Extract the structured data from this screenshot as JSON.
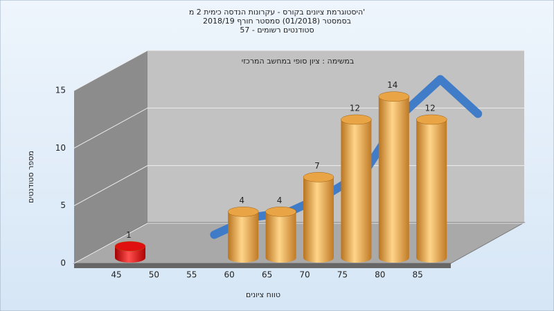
{
  "chart_data": {
    "type": "bar",
    "title_lines": [
      "היסטוגרמת ציונים בקורס - עקרונות הנדסה כימית 2 מ'",
      "בסמסטר  (01/2018)  סמסטר חורף 2018/19",
      "סטודנטים רשומים - 57"
    ],
    "subtitle": "במשימה : ציון סופי במחשב המרכזי",
    "xlabel": "טווח ציונים",
    "ylabel": "מספר סטודנטים",
    "categories": [
      "45",
      "50",
      "55",
      "60",
      "65",
      "70",
      "75",
      "80",
      "85"
    ],
    "series": [
      {
        "values": [
          1,
          0,
          0,
          4,
          4,
          7,
          12,
          14,
          12
        ],
        "colors": [
          "#e01010",
          "#e8a445",
          "#e8a445",
          "#e8a445",
          "#e8a445",
          "#e8a445",
          "#e8a445",
          "#e8a445",
          "#e8a445"
        ]
      },
      {
        "values": [
          null,
          0.5,
          2,
          2.5,
          4,
          6,
          11,
          14,
          11
        ],
        "color": "#3a78c8"
      }
    ],
    "ylim": [
      0,
      15
    ],
    "yticks": [
      0,
      5,
      10,
      15
    ],
    "grid": true
  }
}
